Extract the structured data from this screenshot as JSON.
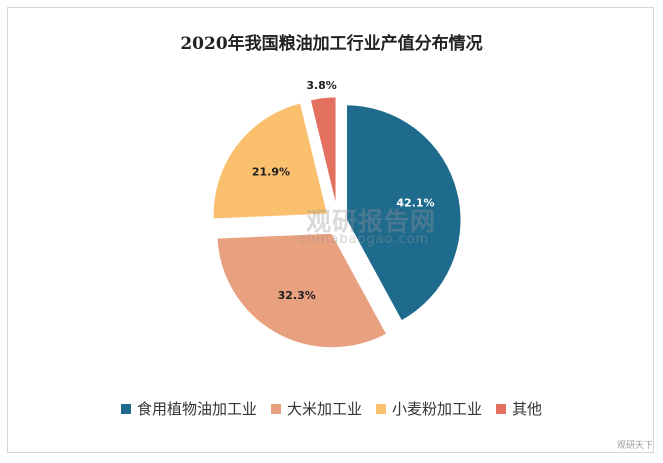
{
  "chart_data": {
    "type": "pie",
    "title": "2020年我国粮油加工行业产值分布情况",
    "slices": [
      {
        "label": "食用植物油加工业",
        "value": 42.1,
        "value_label": "42.1%",
        "color": "#1f6b8e"
      },
      {
        "label": "大米加工业",
        "value": 32.3,
        "value_label": "32.3%",
        "color": "#e8a07f"
      },
      {
        "label": "小麦粉加工业",
        "value": 21.9,
        "value_label": "21.9%",
        "color": "#fbc06e"
      },
      {
        "label": "其他",
        "value": 3.8,
        "value_label": "3.8%",
        "color": "#e4705f"
      }
    ],
    "legend_position": "bottom",
    "exploded": true
  },
  "watermark": {
    "brand_cn": "观研报告网",
    "brand_en": "chinabaogao.com"
  },
  "corner_mark": "观研天下"
}
